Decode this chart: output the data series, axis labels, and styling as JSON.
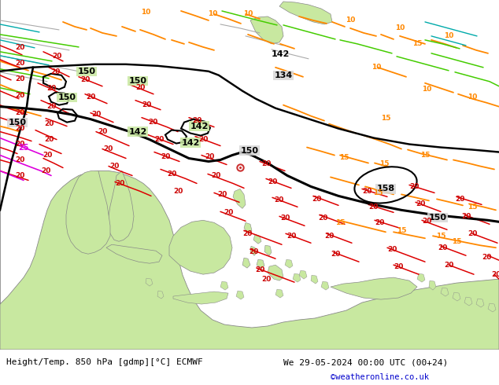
{
  "title_left": "Height/Temp. 850 hPa [gdmp][°C] ECMWF",
  "title_right": "We 29-05-2024 00:00 UTC (00+24)",
  "credit": "©weatheronline.co.uk",
  "ocean_color": "#d8d8d8",
  "land_color": "#c8e8a0",
  "land_edge": "#888888",
  "figsize": [
    6.34,
    4.9
  ],
  "dpi": 100,
  "bottom_bg": "#f0f0ee",
  "black_contour_lw": 2.2,
  "orange_lw": 1.3,
  "red_lw": 1.1,
  "green_lw": 1.1,
  "cyan_lw": 1.0,
  "gray_lw": 0.8,
  "magenta_lw": 1.2
}
